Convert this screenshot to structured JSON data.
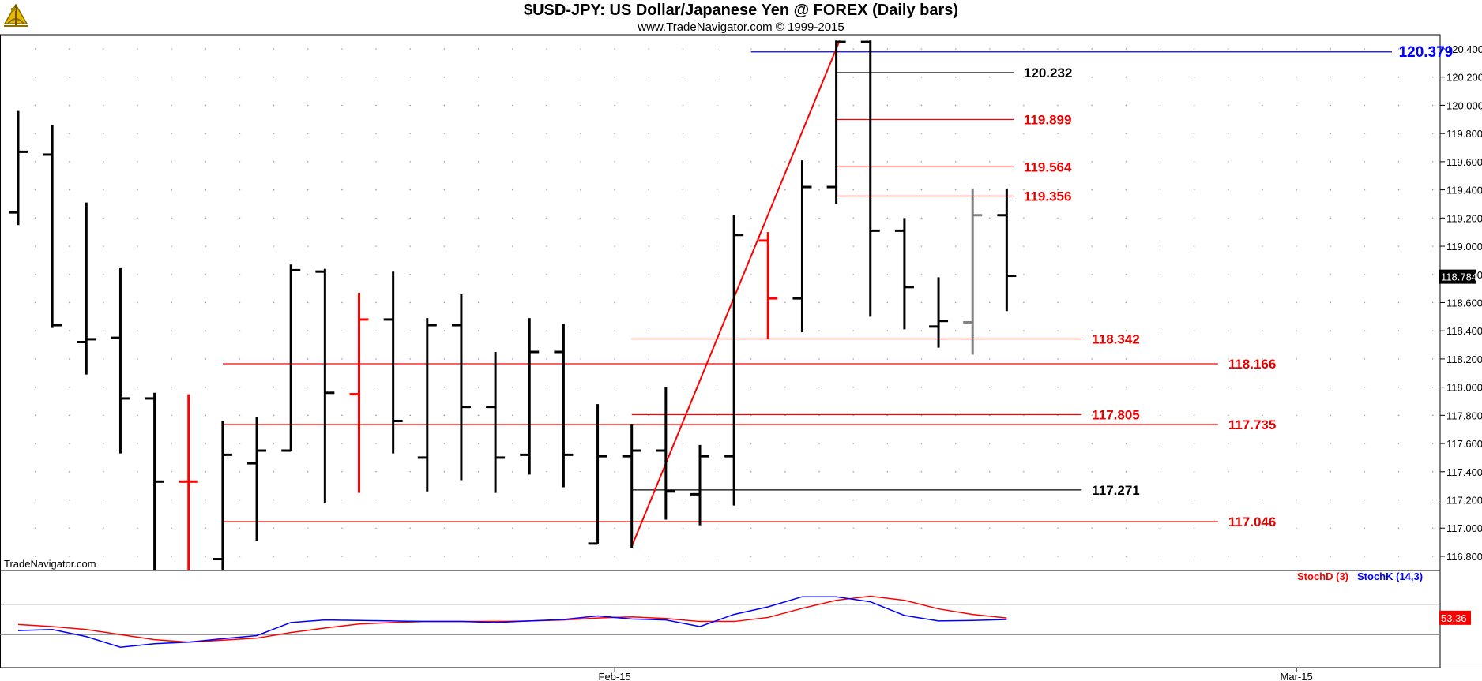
{
  "header": {
    "title": "$USD-JPY:  US Dollar/Japanese Yen @ FOREX  (Daily bars)",
    "subtitle": "www.TradeNavigator.com © 1999-2015",
    "watermark": "TradeNavigator.com",
    "logo_icon": "sextant-logo-icon"
  },
  "colors": {
    "bar": "#000000",
    "bar_red": "#ff0000",
    "bar_gray": "#808080",
    "level_red": "#ff0000",
    "level_black": "#000000",
    "level_blue": "#0000ff",
    "label_red": "#e60000",
    "label_black": "#000000",
    "label_blue": "#0000ff",
    "stoch_d": "#ff0000",
    "stoch_k": "#0000ff"
  },
  "chart_data": [
    {
      "type": "ohlc",
      "title": "$USD-JPY:  US Dollar/Japanese Yen @ FOREX  (Daily bars)",
      "ylim": [
        116.75,
        120.5
      ],
      "y_ticks": [
        "120.400",
        "120.200",
        "120.000",
        "119.800",
        "119.600",
        "119.400",
        "119.200",
        "119.000",
        "118.800",
        "118.600",
        "118.400",
        "118.200",
        "118.000",
        "117.800",
        "117.600",
        "117.400",
        "117.200",
        "117.000",
        "116.800"
      ],
      "x_tick_labels": [
        {
          "label": "Feb-15",
          "index": 17.5
        },
        {
          "label": "Mar-15",
          "index": 37.5
        }
      ],
      "bars": [
        {
          "o": 119.24,
          "h": 119.96,
          "l": 119.15,
          "c": 119.67,
          "color": "black"
        },
        {
          "o": 119.65,
          "h": 119.86,
          "l": 118.42,
          "c": 118.44,
          "color": "black"
        },
        {
          "o": 118.32,
          "h": 119.31,
          "l": 118.09,
          "c": 118.34,
          "color": "black"
        },
        {
          "o": 118.35,
          "h": 118.85,
          "l": 117.53,
          "c": 117.92,
          "color": "black"
        },
        {
          "o": 117.92,
          "h": 117.96,
          "l": 116.7,
          "c": 117.33,
          "color": "black"
        },
        {
          "o": 117.33,
          "h": 117.95,
          "l": 116.7,
          "c": 117.33,
          "color": "red"
        },
        {
          "o": 116.78,
          "h": 117.76,
          "l": 116.7,
          "c": 117.52,
          "color": "black"
        },
        {
          "o": 117.46,
          "h": 117.79,
          "l": 116.91,
          "c": 117.55,
          "color": "black"
        },
        {
          "o": 117.55,
          "h": 118.87,
          "l": 117.55,
          "c": 118.83,
          "color": "black"
        },
        {
          "o": 118.82,
          "h": 118.84,
          "l": 117.18,
          "c": 117.96,
          "color": "black"
        },
        {
          "o": 117.95,
          "h": 118.67,
          "l": 117.25,
          "c": 118.48,
          "color": "red"
        },
        {
          "o": 118.48,
          "h": 118.82,
          "l": 117.53,
          "c": 117.76,
          "color": "black"
        },
        {
          "o": 117.5,
          "h": 118.49,
          "l": 117.26,
          "c": 118.44,
          "color": "black"
        },
        {
          "o": 118.44,
          "h": 118.66,
          "l": 117.34,
          "c": 117.86,
          "color": "black"
        },
        {
          "o": 117.86,
          "h": 118.25,
          "l": 117.25,
          "c": 117.5,
          "color": "black"
        },
        {
          "o": 117.52,
          "h": 118.49,
          "l": 117.38,
          "c": 118.25,
          "color": "black"
        },
        {
          "o": 118.25,
          "h": 118.45,
          "l": 117.29,
          "c": 117.52,
          "color": "black"
        },
        {
          "o": 116.89,
          "h": 117.88,
          "l": 116.89,
          "c": 117.51,
          "color": "black"
        },
        {
          "o": 117.51,
          "h": 117.74,
          "l": 116.86,
          "c": 117.55,
          "color": "black"
        },
        {
          "o": 117.55,
          "h": 118.0,
          "l": 117.06,
          "c": 117.26,
          "color": "black"
        },
        {
          "o": 117.24,
          "h": 117.59,
          "l": 117.02,
          "c": 117.51,
          "color": "black"
        },
        {
          "o": 117.51,
          "h": 119.22,
          "l": 117.16,
          "c": 119.08,
          "color": "black"
        },
        {
          "o": 119.04,
          "h": 119.1,
          "l": 118.34,
          "c": 118.63,
          "color": "red"
        },
        {
          "o": 118.63,
          "h": 119.61,
          "l": 118.39,
          "c": 119.42,
          "color": "black"
        },
        {
          "o": 119.42,
          "h": 120.46,
          "l": 119.3,
          "c": 120.45,
          "color": "black"
        },
        {
          "o": 120.45,
          "h": 120.46,
          "l": 118.5,
          "c": 119.11,
          "color": "black"
        },
        {
          "o": 119.11,
          "h": 119.2,
          "l": 118.41,
          "c": 118.71,
          "color": "black"
        },
        {
          "o": 118.43,
          "h": 118.78,
          "l": 118.28,
          "c": 118.47,
          "color": "black"
        },
        {
          "o": 118.46,
          "h": 119.41,
          "l": 118.23,
          "c": 119.22,
          "color": "gray"
        },
        {
          "o": 119.22,
          "h": 119.41,
          "l": 118.54,
          "c": 118.79,
          "color": "black"
        }
      ],
      "trendline": {
        "from": {
          "index": 18,
          "price": 116.87
        },
        "to": {
          "index": 24.1,
          "price": 120.46
        }
      },
      "levels": [
        {
          "price": 120.379,
          "label": "120.379",
          "color": "blue",
          "from": 21.5,
          "to": 40.3,
          "label_at": 40.5,
          "big": true
        },
        {
          "price": 120.232,
          "label": "120.232",
          "color": "black",
          "from": 24,
          "to": 29.2,
          "label_at": 29.5
        },
        {
          "price": 119.899,
          "label": "119.899",
          "color": "red",
          "from": 24,
          "to": 29.2,
          "label_at": 29.5
        },
        {
          "price": 119.564,
          "label": "119.564",
          "color": "red",
          "from": 24,
          "to": 29.2,
          "label_at": 29.5
        },
        {
          "price": 119.356,
          "label": "119.356",
          "color": "red",
          "from": 24,
          "to": 29.2,
          "label_at": 29.5
        },
        {
          "price": 118.342,
          "label": "118.342",
          "color": "red",
          "from": 18,
          "to": 31.2,
          "label_at": 31.5
        },
        {
          "price": 118.166,
          "label": "118.166",
          "color": "red",
          "from": 6,
          "to": 35.2,
          "label_at": 35.5
        },
        {
          "price": 117.805,
          "label": "117.805",
          "color": "red",
          "from": 18,
          "to": 31.2,
          "label_at": 31.5
        },
        {
          "price": 117.735,
          "label": "117.735",
          "color": "red",
          "from": 6,
          "to": 35.2,
          "label_at": 35.5
        },
        {
          "price": 117.271,
          "label": "117.271",
          "color": "black",
          "from": 18,
          "to": 31.2,
          "label_at": 31.5
        },
        {
          "price": 117.046,
          "label": "117.046",
          "color": "red",
          "from": 6,
          "to": 35.2,
          "label_at": 35.5
        }
      ],
      "last_price": {
        "value": 118.784,
        "label": "118.784"
      }
    },
    {
      "type": "line",
      "title": "",
      "ylim": [
        0,
        100
      ],
      "series": [
        {
          "name": "StochD (3)",
          "color": "red",
          "values": [
            40,
            36,
            30,
            20,
            10,
            5,
            9,
            13,
            24,
            33,
            41,
            44,
            46,
            46,
            46,
            47,
            49,
            53,
            55,
            52,
            46,
            46,
            54,
            72,
            88,
            96,
            88,
            71,
            60,
            53
          ]
        },
        {
          "name": "StochK (14,3)",
          "color": "blue",
          "values": [
            28,
            30,
            16,
            -5,
            2,
            5,
            12,
            18,
            44,
            49,
            48,
            47,
            46,
            46,
            44,
            47,
            50,
            57,
            51,
            49,
            36,
            60,
            75,
            95,
            95,
            85,
            58,
            47,
            48,
            50
          ]
        }
      ],
      "ref_lines": [
        80,
        20
      ],
      "last_value": {
        "value": 53.36,
        "label": "53.36"
      }
    }
  ]
}
